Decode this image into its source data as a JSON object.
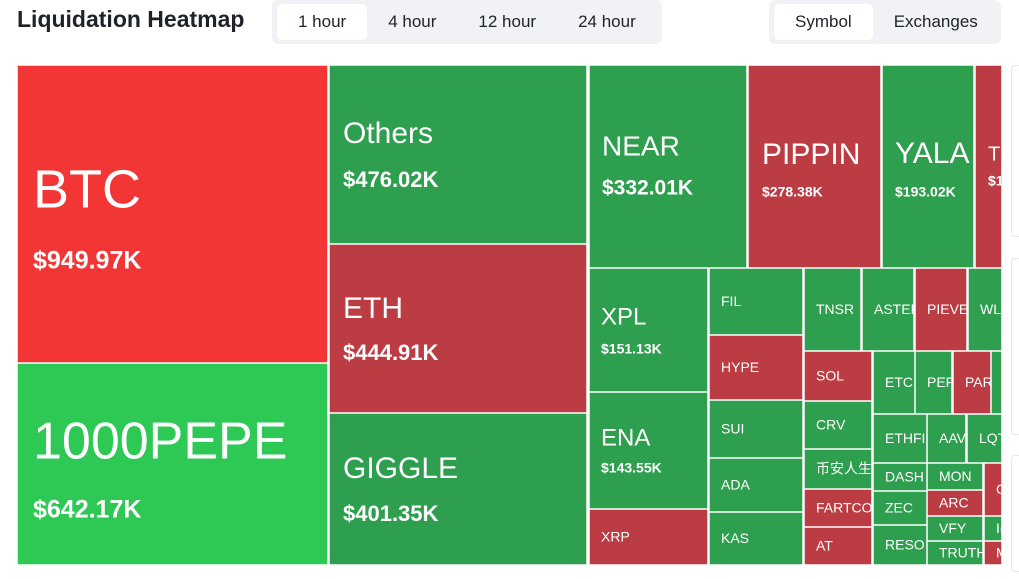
{
  "header": {
    "title": "Liquidation Heatmap",
    "time_tabs": [
      "1 hour",
      "4 hour",
      "12 hour",
      "24 hour"
    ],
    "view_tabs": [
      "Symbol",
      "Exchanges"
    ]
  },
  "tiles": [
    {
      "symbol": "BTC",
      "value": "$949.97K",
      "color": "#f23636"
    },
    {
      "symbol": "1000PEPE",
      "value": "$642.17K",
      "color": "#2ec955"
    },
    {
      "symbol": "Others",
      "value": "$476.02K",
      "color": "#2e9e4f"
    },
    {
      "symbol": "ETH",
      "value": "$444.91K",
      "color": "#bb3c42"
    },
    {
      "symbol": "GIGGLE",
      "value": "$401.35K",
      "color": "#2e9e4f"
    },
    {
      "symbol": "NEAR",
      "value": "$332.01K",
      "color": "#2e9e4f"
    },
    {
      "symbol": "PIPPIN",
      "value": "$278.38K",
      "color": "#bb3c42"
    },
    {
      "symbol": "YALA",
      "value": "$193.02K",
      "color": "#2e9e4f"
    },
    {
      "symbol": "T",
      "value": "$1",
      "color": "#bb3c42"
    },
    {
      "symbol": "XPL",
      "value": "$151.13K",
      "color": "#2e9e4f"
    },
    {
      "symbol": "ENA",
      "value": "$143.55K",
      "color": "#2e9e4f"
    },
    {
      "symbol": "XRP",
      "color": "#bb3c42"
    },
    {
      "symbol": "FIL",
      "color": "#2e9e4f"
    },
    {
      "symbol": "HYPE",
      "color": "#bb3c42"
    },
    {
      "symbol": "SUI",
      "color": "#2e9e4f"
    },
    {
      "symbol": "ADA",
      "color": "#2e9e4f"
    },
    {
      "symbol": "KAS",
      "color": "#2e9e4f"
    },
    {
      "symbol": "TNSR",
      "color": "#2e9e4f"
    },
    {
      "symbol": "ASTER",
      "color": "#2e9e4f"
    },
    {
      "symbol": "PIEVE",
      "color": "#bb3c42"
    },
    {
      "symbol": "WL",
      "color": "#2e9e4f"
    },
    {
      "symbol": "SOL",
      "color": "#bb3c42"
    },
    {
      "symbol": "CRV",
      "color": "#2e9e4f"
    },
    {
      "symbol": "币安人生",
      "color": "#2e9e4f"
    },
    {
      "symbol": "FARTCO",
      "color": "#bb3c42"
    },
    {
      "symbol": "AT",
      "color": "#bb3c42"
    },
    {
      "symbol": "ETC",
      "color": "#2e9e4f"
    },
    {
      "symbol": "PEF",
      "color": "#2e9e4f"
    },
    {
      "symbol": "PAR",
      "color": "#bb3c42"
    },
    {
      "symbol": "ETHFI",
      "color": "#2e9e4f"
    },
    {
      "symbol": "AAV",
      "color": "#2e9e4f"
    },
    {
      "symbol": "LQT",
      "color": "#2e9e4f"
    },
    {
      "symbol": "DASH",
      "color": "#2e9e4f"
    },
    {
      "symbol": "MON",
      "color": "#2e9e4f"
    },
    {
      "symbol": "G",
      "color": "#bb3c42"
    },
    {
      "symbol": "ZEC",
      "color": "#2e9e4f"
    },
    {
      "symbol": "ARC",
      "color": "#bb3c42"
    },
    {
      "symbol": "VFY",
      "color": "#2e9e4f"
    },
    {
      "symbol": "I(",
      "color": "#2e9e4f"
    },
    {
      "symbol": "RESO",
      "color": "#2e9e4f"
    },
    {
      "symbol": "TRUTH",
      "color": "#2e9e4f"
    },
    {
      "symbol": "M",
      "color": "#bb3c42"
    }
  ]
}
